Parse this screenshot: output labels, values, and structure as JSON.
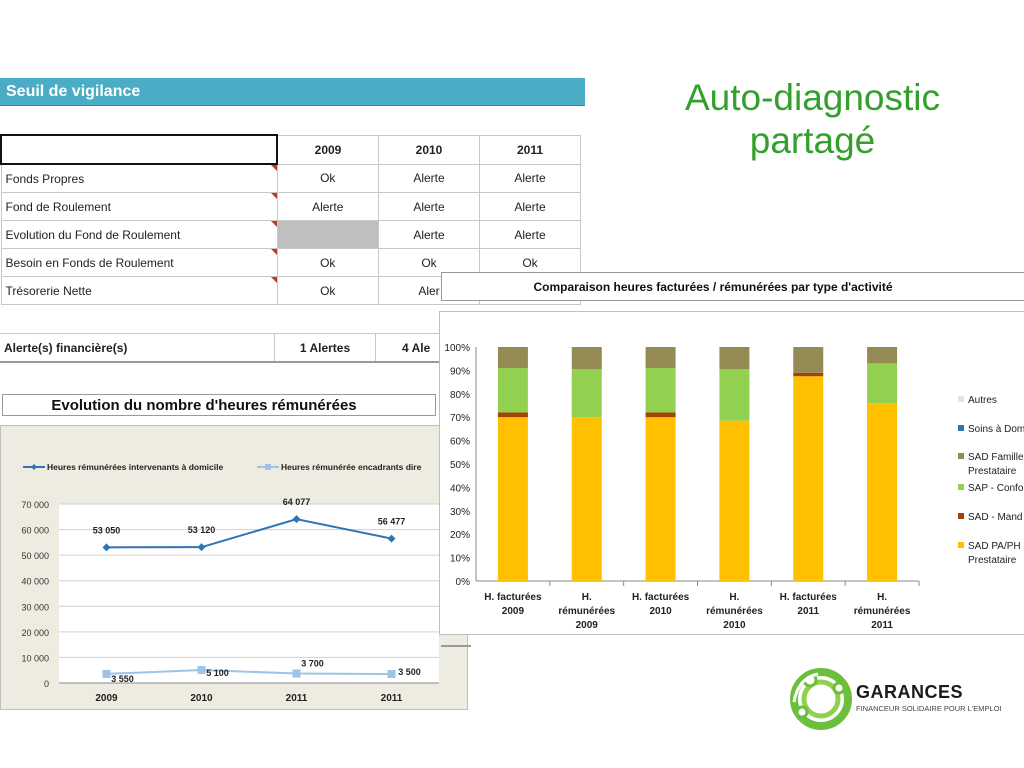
{
  "slide_title": "Auto-diagnostic partagé",
  "vigilance": {
    "header": "Seuil de vigilance",
    "years": [
      "2009",
      "2010",
      "2011"
    ],
    "rows": [
      {
        "label": "Fonds Propres",
        "v2009": "Ok",
        "v2010": "Alerte",
        "v2011": "Alerte"
      },
      {
        "label": "Fond de Roulement",
        "v2009": "Alerte",
        "v2010": "Alerte",
        "v2011": "Alerte"
      },
      {
        "label": "Evolution du Fond de Roulement",
        "v2009": "",
        "v2010": "Alerte",
        "v2011": "Alerte"
      },
      {
        "label": "Besoin en Fonds de Roulement",
        "v2009": "Ok",
        "v2010": "Ok",
        "v2011": "Ok"
      },
      {
        "label": "Trésorerie Nette",
        "v2009": "Ok",
        "v2010": "Aler",
        "v2011": ""
      }
    ],
    "alert_label": "Alerte(s) financière(s)",
    "alert_2009": "1 Alertes",
    "alert_2010": "4 Ale"
  },
  "line_chart_title": "Evolution du nombre d'heures rémunérées",
  "bar_chart_title": "Comparaison heures facturées / rémunérées par type d'activité",
  "logo": {
    "name": "GARANCES",
    "tagline": "FINANCEUR SOLIDAIRE POUR L'EMPLOI"
  },
  "colors": {
    "header_bar": "#4bacc6",
    "title_green": "#33a02c",
    "line_dark": "#2e75b6",
    "line_light": "#9dc3e6"
  },
  "chart_data": [
    {
      "type": "line",
      "title": "Evolution du nombre d'heures rémunérées",
      "categories": [
        "2009",
        "2010",
        "2011",
        "2011"
      ],
      "ylim": [
        0,
        70000
      ],
      "yticks": [
        "0",
        "10 000",
        "20 000",
        "30 000",
        "40 000",
        "50 000",
        "60 000",
        "70 000"
      ],
      "grid": true,
      "legend_position": "top",
      "series": [
        {
          "name": "Heures rémunérées intervenants à domicile",
          "values": [
            53050,
            53120,
            64077,
            56477
          ],
          "labels": [
            "53 050",
            "53 120",
            "64 077",
            "56 477"
          ],
          "color": "#2e75b6"
        },
        {
          "name": "Heures rémunérée encadrants dire",
          "values": [
            3550,
            5100,
            3700,
            3500
          ],
          "labels": [
            "3 550",
            "5 100",
            "3 700",
            "3 500"
          ],
          "color": "#9dc3e6"
        }
      ]
    },
    {
      "type": "bar",
      "stacked": true,
      "title": "Comparaison heures facturées / rémunérées par type d'activité",
      "categories": [
        [
          "H. facturées",
          "2009"
        ],
        [
          "H.",
          "rémunérées",
          "2009"
        ],
        [
          "H. facturées",
          "2010"
        ],
        [
          "H.",
          "rémunérées",
          "2010"
        ],
        [
          "H. facturées",
          "2011"
        ],
        [
          "H.",
          "rémunérées",
          "2011"
        ]
      ],
      "ylim": [
        0,
        100
      ],
      "yticks": [
        "0%",
        "10%",
        "20%",
        "30%",
        "40%",
        "50%",
        "60%",
        "70%",
        "80%",
        "90%",
        "100%"
      ],
      "legend_position": "right",
      "series": [
        {
          "name": "SAD PA/PH | Prestataire",
          "legend_lines": [
            "SAD PA/PH",
            "Prestataire"
          ],
          "values": [
            70,
            70,
            70,
            68.5,
            87.5,
            76
          ],
          "color": "#ffc000"
        },
        {
          "name": "SAD - Mand",
          "legend_lines": [
            "SAD - Mand"
          ],
          "values": [
            2,
            0,
            2,
            0,
            1.5,
            0
          ],
          "color": "#a5420a"
        },
        {
          "name": "SAP - Confo",
          "legend_lines": [
            "SAP - Confo"
          ],
          "values": [
            19,
            20.5,
            19,
            22,
            0,
            17
          ],
          "color": "#92d050"
        },
        {
          "name": "SAD Famille | Prestataire",
          "legend_lines": [
            "SAD Famille",
            "Prestataire"
          ],
          "values": [
            9,
            9.5,
            9,
            9.5,
            11,
            7
          ],
          "color": "#948a54"
        },
        {
          "name": "Soins à Dom",
          "legend_lines": [
            "Soins à Dom"
          ],
          "values": [
            0,
            0,
            0,
            0,
            0,
            0
          ],
          "color": "#2e75b6"
        },
        {
          "name": "Autres",
          "legend_lines": [
            "Autres"
          ],
          "values": [
            0,
            0,
            0,
            0,
            0,
            0
          ],
          "color": "#dce6f1"
        }
      ]
    }
  ]
}
